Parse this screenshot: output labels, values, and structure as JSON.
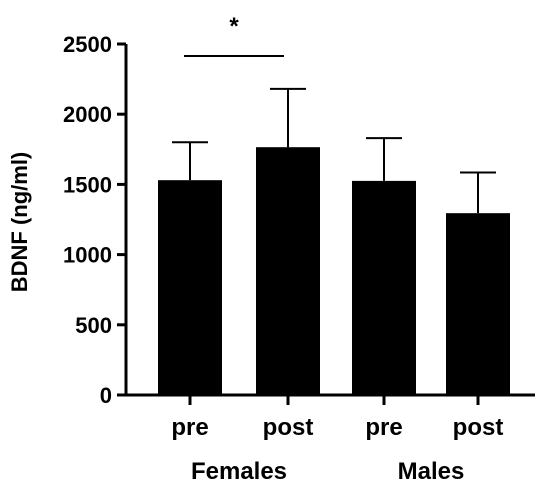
{
  "chart_data": {
    "type": "bar",
    "ylabel": "BDNF (ng/ml)",
    "ylim": [
      0,
      2500
    ],
    "yticks": [
      0,
      500,
      1000,
      1500,
      2000,
      2500
    ],
    "categories": [
      "pre",
      "post",
      "pre",
      "post"
    ],
    "groups": [
      {
        "label": "Females",
        "categories": [
          0,
          1
        ]
      },
      {
        "label": "Males",
        "categories": [
          2,
          3
        ]
      }
    ],
    "values": [
      1530,
      1765,
      1525,
      1295
    ],
    "error_upper": [
      1800,
      2180,
      1830,
      1585
    ],
    "significance": [
      {
        "from": 0,
        "to": 1,
        "label": "*"
      }
    ],
    "colors": {
      "bar": "#000000"
    },
    "grid": false
  }
}
